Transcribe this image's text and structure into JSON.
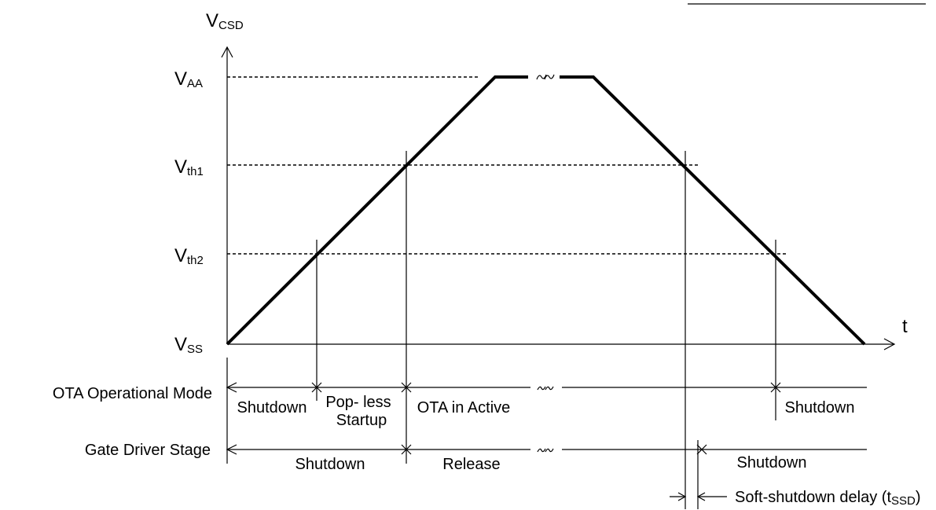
{
  "axis": {
    "y_label": {
      "main": "V",
      "sub": "CSD"
    },
    "x_label": "t"
  },
  "levels": [
    {
      "main": "V",
      "sub": "AA"
    },
    {
      "main": "V",
      "sub": "th1"
    },
    {
      "main": "V",
      "sub": "th2"
    },
    {
      "main": "V",
      "sub": "SS"
    }
  ],
  "rows": [
    {
      "label": "OTA Operational Mode",
      "states": [
        "Shutdown",
        "Pop- less",
        "Startup",
        "OTA in Active",
        "Shutdown"
      ]
    },
    {
      "label": "Gate Driver Stage",
      "states": [
        "Shutdown",
        "Release",
        "Shutdown"
      ]
    }
  ],
  "delay_label": {
    "main": "Soft-shutdown delay (t",
    "sub": "SSD",
    "tail": ")"
  }
}
